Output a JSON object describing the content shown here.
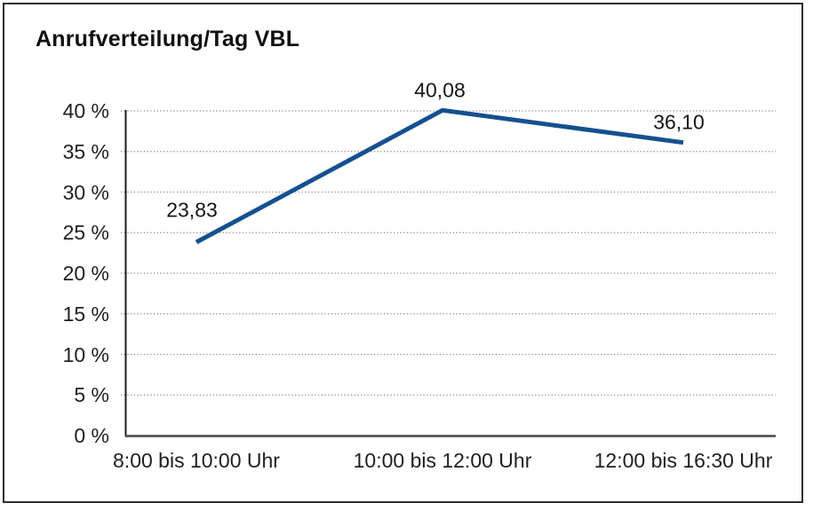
{
  "title": "Anrufverteilung/Tag VBL",
  "colors": {
    "line": "#15508F",
    "grid": "#8f8f8f",
    "y_axis": "#1a1a1a",
    "x_axis": "#454545",
    "border": "#2e2e2e",
    "background": "#ffffff",
    "text": "#1a1a1a"
  },
  "chart_data": {
    "type": "line",
    "title": "Anrufverteilung/Tag VBL",
    "categories": [
      "8:00 bis 10:00 Uhr",
      "10:00 bis 12:00 Uhr",
      "12:00 bis 16:30 Uhr"
    ],
    "values": [
      23.83,
      40.08,
      36.1
    ],
    "value_labels": [
      "23,83",
      "40,08",
      "36,10"
    ],
    "xlabel": "",
    "ylabel": "",
    "ylim": [
      0,
      40
    ],
    "ytick_step": 5,
    "ytick_labels": [
      "0 %",
      "5 %",
      "10 %",
      "15 %",
      "20 %",
      "25 %",
      "30 %",
      "35 %",
      "40 %"
    ],
    "grid": "horizontal-dotted",
    "legend_position": "none",
    "markers": "none"
  }
}
